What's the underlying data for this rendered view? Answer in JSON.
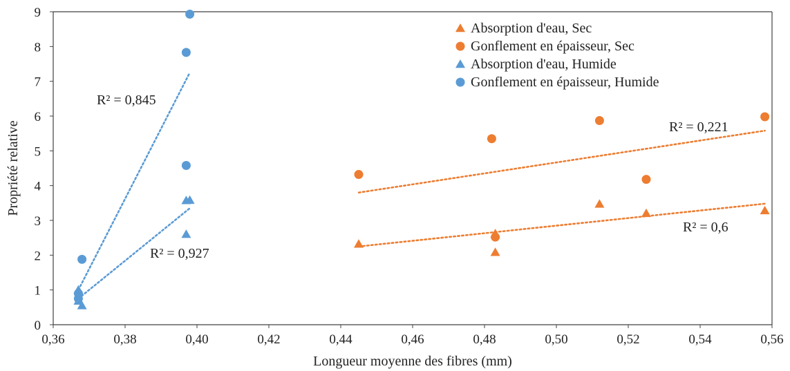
{
  "chart_data": {
    "type": "scatter",
    "xlabel": "Longueur moyenne des fibres (mm)",
    "ylabel": "Propriété relative",
    "xlim": [
      0.36,
      0.56
    ],
    "ylim": [
      0,
      9
    ],
    "xticks": [
      "0,36",
      "0,38",
      "0,40",
      "0,42",
      "0,44",
      "0,46",
      "0,48",
      "0,50",
      "0,52",
      "0,54",
      "0,56"
    ],
    "yticks": [
      "0",
      "1",
      "2",
      "3",
      "4",
      "5",
      "6",
      "7",
      "8",
      "9"
    ],
    "grid": false,
    "legend_position": "top-right",
    "colors": {
      "orange": "#ED7D31",
      "blue": "#5B9BD5"
    },
    "series": [
      {
        "name": "Absorption d'eau, Sec",
        "marker": "triangle",
        "color": "#ED7D31",
        "points": [
          [
            0.445,
            2.32
          ],
          [
            0.483,
            2.62
          ],
          [
            0.483,
            2.08
          ],
          [
            0.512,
            3.47
          ],
          [
            0.525,
            3.2
          ],
          [
            0.558,
            3.28
          ]
        ]
      },
      {
        "name": "Gonflement en épaisseur, Sec",
        "marker": "circle",
        "color": "#ED7D31",
        "points": [
          [
            0.445,
            4.32
          ],
          [
            0.482,
            5.35
          ],
          [
            0.483,
            2.52
          ],
          [
            0.512,
            5.87
          ],
          [
            0.525,
            4.18
          ],
          [
            0.558,
            5.98
          ]
        ]
      },
      {
        "name": "Absorption d'eau, Humide",
        "marker": "triangle",
        "color": "#5B9BD5",
        "points": [
          [
            0.367,
            1.0
          ],
          [
            0.367,
            0.68
          ],
          [
            0.368,
            0.55
          ],
          [
            0.397,
            3.57
          ],
          [
            0.398,
            3.58
          ],
          [
            0.397,
            2.6
          ]
        ]
      },
      {
        "name": "Gonflement en épaisseur, Humide",
        "marker": "circle",
        "color": "#5B9BD5",
        "points": [
          [
            0.367,
            0.9
          ],
          [
            0.367,
            0.75
          ],
          [
            0.368,
            1.88
          ],
          [
            0.397,
            7.83
          ],
          [
            0.398,
            8.93
          ],
          [
            0.397,
            4.58
          ]
        ]
      }
    ],
    "trendlines": [
      {
        "series": "Gonflement en épaisseur, Sec",
        "color": "#ED7D31",
        "x": [
          0.445,
          0.558
        ],
        "y": [
          3.8,
          5.58
        ],
        "r2": "R² = 0,221"
      },
      {
        "series": "Absorption d'eau, Sec",
        "color": "#ED7D31",
        "x": [
          0.445,
          0.558
        ],
        "y": [
          2.25,
          3.48
        ],
        "r2": "R² = 0,6"
      },
      {
        "series": "Gonflement en épaisseur, Humide",
        "color": "#5B9BD5",
        "x": [
          0.367,
          0.398
        ],
        "y": [
          1.0,
          7.25
        ],
        "r2": "R² = 0,845"
      },
      {
        "series": "Absorption d'eau, Humide",
        "color": "#5B9BD5",
        "x": [
          0.367,
          0.398
        ],
        "y": [
          0.75,
          3.35
        ],
        "r2": "R² = 0,927"
      }
    ]
  }
}
